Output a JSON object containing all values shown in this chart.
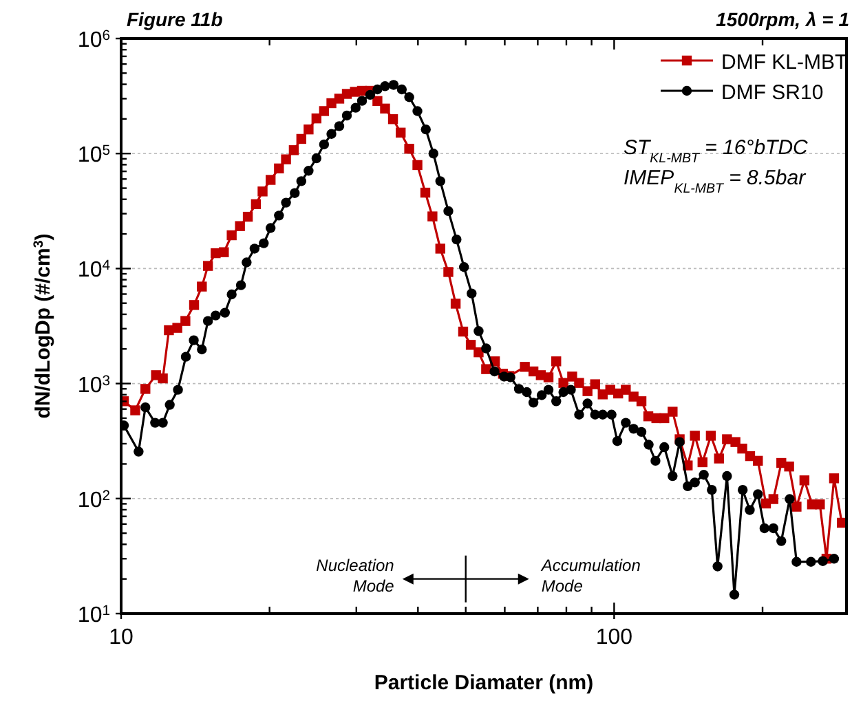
{
  "chart_data": {
    "type": "line",
    "title": "Figure 11b",
    "subtitle": "1500rpm, λ = 1",
    "xlabel": "Particle Diamater (nm)",
    "ylabel": "dN/dLogDp (#/cm$^{3}$)",
    "log": "xy",
    "grid": "y",
    "legend": "top right",
    "xlim": [
      10,
      296
    ],
    "ylim": [
      10,
      1000000
    ],
    "xticks": [
      10,
      {
        "value": 20,
        "label": null
      },
      {
        "value": 30,
        "label": null
      },
      {
        "value": 40,
        "label": null
      },
      {
        "value": 50,
        "label": null
      },
      {
        "value": 60,
        "label": null
      },
      {
        "value": 70,
        "label": null
      },
      {
        "value": 80,
        "label": null
      },
      {
        "value": 90,
        "label": null
      },
      100,
      {
        "value": 200,
        "label": null
      }
    ],
    "yticks": [
      {
        "value": 10,
        "label": "10$^{1}$"
      },
      {
        "value": 20,
        "label": null
      },
      {
        "value": 30,
        "label": null
      },
      {
        "value": 40,
        "label": null
      },
      {
        "value": 50,
        "label": null
      },
      {
        "value": 60,
        "label": null
      },
      {
        "value": 70,
        "label": null
      },
      {
        "value": 80,
        "label": null
      },
      {
        "value": 90,
        "label": null
      },
      {
        "value": 100,
        "label": "10$^{2}$"
      },
      {
        "value": 200,
        "label": null
      },
      {
        "value": 300,
        "label": null
      },
      {
        "value": 400,
        "label": null
      },
      {
        "value": 500,
        "label": null
      },
      {
        "value": 600,
        "label": null
      },
      {
        "value": 700,
        "label": null
      },
      {
        "value": 800,
        "label": null
      },
      {
        "value": 900,
        "label": null
      },
      {
        "value": 1000,
        "label": "10$^{3}$"
      },
      {
        "value": 2000,
        "label": null
      },
      {
        "value": 3000,
        "label": null
      },
      {
        "value": 4000,
        "label": null
      },
      {
        "value": 5000,
        "label": null
      },
      {
        "value": 6000,
        "label": null
      },
      {
        "value": 7000,
        "label": null
      },
      {
        "value": 8000,
        "label": null
      },
      {
        "value": 9000,
        "label": null
      },
      {
        "value": 10000,
        "label": "10$^{4}$"
      },
      {
        "value": 20000,
        "label": null
      },
      {
        "value": 30000,
        "label": null
      },
      {
        "value": 40000,
        "label": null
      },
      {
        "value": 50000,
        "label": null
      },
      {
        "value": 60000,
        "label": null
      },
      {
        "value": 70000,
        "label": null
      },
      {
        "value": 80000,
        "label": null
      },
      {
        "value": 90000,
        "label": null
      },
      {
        "value": 100000,
        "label": "10$^{5}$"
      },
      {
        "value": 200000,
        "label": null
      },
      {
        "value": 300000,
        "label": null
      },
      {
        "value": 400000,
        "label": null
      },
      {
        "value": 500000,
        "label": null
      },
      {
        "value": 600000,
        "label": null
      },
      {
        "value": 700000,
        "label": null
      },
      {
        "value": 800000,
        "label": null
      },
      {
        "value": 900000,
        "label": null
      },
      {
        "value": 1000000,
        "label": "10$^{6}$"
      }
    ],
    "annotations": [
      "ST$_{KL-MBT}$ = 16°bTDC",
      "IMEP$_{KL-MBT}$ = 8.5bar",
      "Nucleation Mode",
      "Accumulation Mode"
    ],
    "series": [
      {
        "name": "DMF KL-MBT",
        "color": "#c00000",
        "marker": "square",
        "x": [
          10.13,
          10.68,
          11.2,
          11.77,
          12.15,
          12.5,
          13.0,
          13.5,
          14.06,
          14.58,
          15.0,
          15.55,
          16.16,
          16.76,
          17.42,
          18.07,
          18.77,
          19.36,
          20.1,
          20.9,
          21.6,
          22.4,
          23.2,
          24.0,
          24.9,
          25.8,
          26.7,
          27.7,
          28.7,
          29.8,
          30.8,
          32.0,
          33.1,
          34.3,
          35.6,
          36.9,
          38.4,
          39.9,
          41.4,
          42.8,
          44.4,
          46.1,
          47.7,
          49.4,
          51.2,
          53.1,
          55.0,
          57.3,
          59.5,
          61.3,
          65.9,
          68.6,
          71.0,
          73.6,
          76.3,
          78.9,
          82.2,
          84.9,
          88.3,
          91.5,
          94.8,
          98.2,
          101.9,
          105.6,
          109.5,
          113.6,
          117.3,
          121.8,
          126.4,
          131.4,
          135.8,
          141,
          145.8,
          151.1,
          157.1,
          163.2,
          169.4,
          176.2,
          181.9,
          188.7,
          195.7,
          203.2,
          210.4,
          218.3,
          226.4,
          234.4,
          243.2,
          252,
          261.4,
          269.6,
          279.3,
          289.6
        ],
        "values": [
          702,
          585,
          898,
          1183,
          1110,
          2910,
          3050,
          3500,
          4820,
          6970,
          10540,
          13600,
          13870,
          19470,
          23400,
          28200,
          36300,
          46800,
          59000,
          74200,
          89000,
          107000,
          134000,
          162000,
          202000,
          234000,
          274000,
          300000,
          330000,
          344000,
          351000,
          351000,
          286000,
          246000,
          199000,
          152000,
          110000,
          79400,
          45700,
          28400,
          14900,
          9330,
          4950,
          2830,
          2170,
          1870,
          1335,
          1560,
          1217,
          1163,
          1397,
          1275,
          1183,
          1133,
          1560,
          1013,
          1150,
          1013,
          859,
          986,
          805,
          883,
          820,
          883,
          770,
          702,
          519,
          500,
          500,
          569,
          328,
          194,
          352,
          207,
          352,
          223,
          328,
          310,
          272,
          234,
          213,
          90.6,
          99,
          204,
          190,
          85,
          144,
          89,
          89,
          30,
          150,
          61.6
        ]
      },
      {
        "name": "DMF SR10",
        "color": "#000000",
        "marker": "circle",
        "x": [
          10.13,
          10.85,
          11.2,
          11.72,
          12.15,
          12.55,
          13.04,
          13.53,
          14.04,
          14.58,
          15.0,
          15.55,
          16.24,
          16.76,
          17.5,
          17.97,
          18.65,
          19.47,
          20.1,
          20.9,
          21.6,
          22.5,
          23.2,
          24.0,
          24.9,
          25.8,
          26.7,
          27.7,
          28.7,
          29.9,
          30.8,
          32.0,
          33.1,
          34.3,
          35.7,
          37.1,
          38.4,
          39.9,
          41.5,
          43.0,
          44.4,
          46.1,
          47.9,
          49.6,
          51.4,
          53.1,
          55.0,
          57.2,
          59.8,
          61.6,
          64.1,
          66.5,
          68.6,
          71.3,
          73.6,
          76.3,
          78.9,
          81.7,
          84.9,
          88.3,
          91.5,
          94.8,
          98.8,
          101.5,
          105.6,
          109.5,
          113.6,
          117.5,
          121.3,
          126.4,
          131.4,
          135.8,
          141,
          145.8,
          152,
          157.8,
          162.1,
          169.4,
          175.3,
          182.3,
          188.4,
          195.7,
          201.8,
          210.4,
          218.3,
          227,
          234.4,
          250.7,
          265,
          279.3
        ],
        "values": [
          432,
          256,
          622,
          456,
          456,
          653,
          883,
          1710,
          2380,
          1980,
          3500,
          3910,
          4130,
          5960,
          7160,
          11300,
          14900,
          16600,
          22500,
          28900,
          37400,
          45300,
          57500,
          70800,
          91000,
          120000,
          148000,
          173000,
          214000,
          250000,
          287000,
          324000,
          361000,
          385000,
          395000,
          361000,
          309000,
          234000,
          162000,
          100000,
          57500,
          31600,
          17900,
          10300,
          6070,
          2860,
          2020,
          1275,
          1150,
          1133,
          898,
          843,
          682,
          792,
          883,
          702,
          843,
          883,
          537,
          671,
          537,
          537,
          537,
          316,
          456,
          404,
          380,
          294,
          213,
          280,
          157,
          310,
          128,
          138,
          161,
          119,
          25.7,
          157,
          14.6,
          119,
          79.5,
          109,
          55.2,
          55.2,
          42.7,
          99,
          28.2,
          28.2,
          28.6,
          30.0
        ]
      }
    ]
  }
}
